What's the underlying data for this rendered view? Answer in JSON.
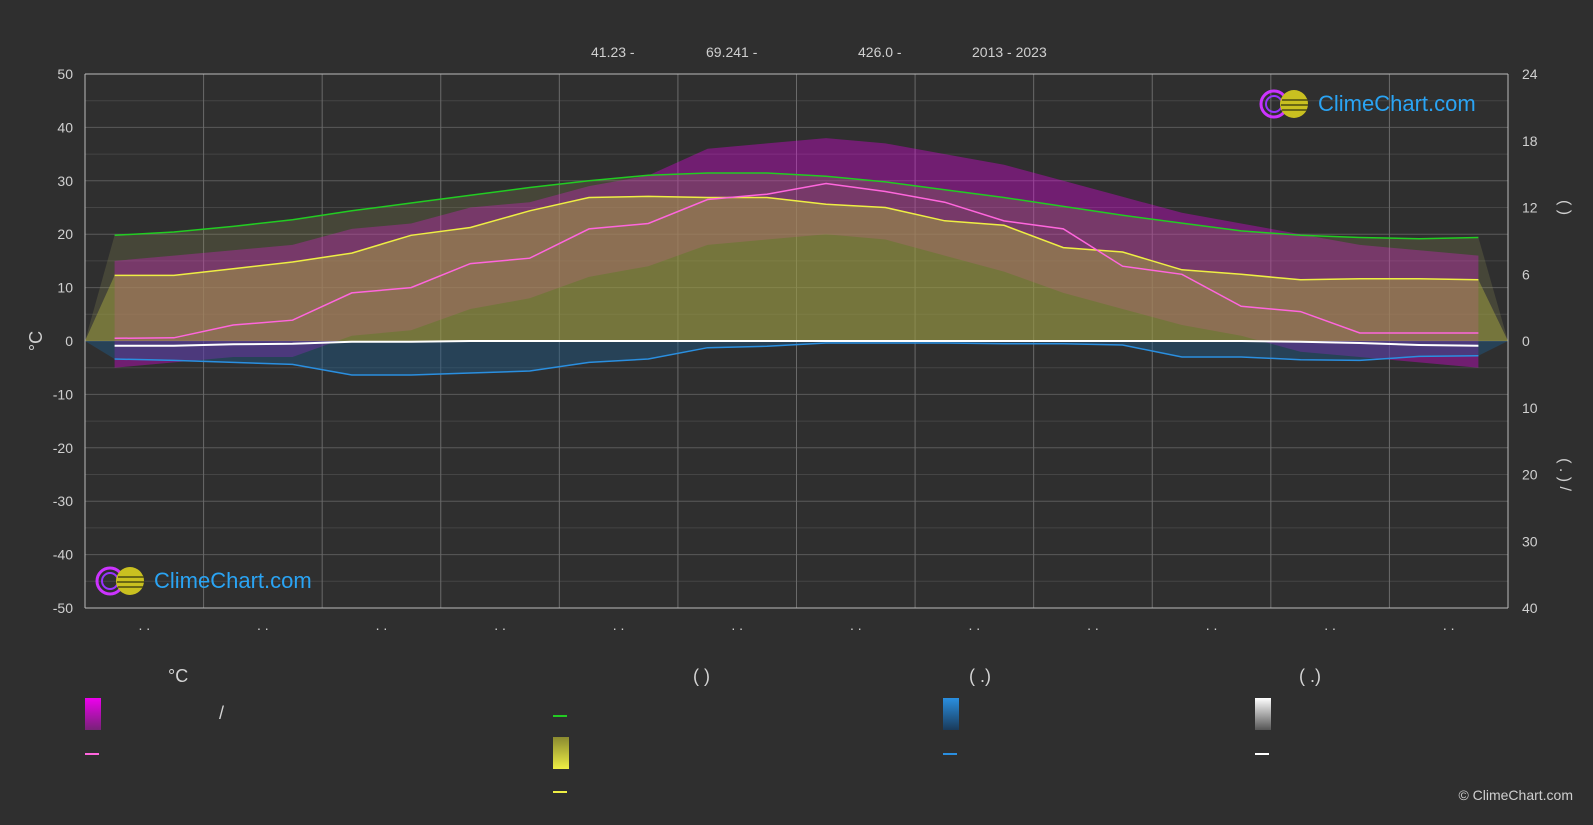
{
  "header": {
    "lat": "41.23 -",
    "lon": "69.241 -",
    "elev": "426.0 -",
    "years": "2013 - 2023"
  },
  "colors": {
    "bg": "#2f2f2f",
    "grid": "#5a5a5a",
    "daylight": "#22cc22",
    "sunshine": "#eeee44",
    "temp_mean": "#ff66dd",
    "temp_band": "#ee00ee",
    "rain": "#2a8fe0",
    "snow": "#ffffff"
  },
  "logo_text": "ClimeChart.com",
  "copyright": "© ClimeChart.com",
  "legend": {
    "temp_heading": "°C",
    "temp_slash": "/",
    "sun_heading": "(           )",
    "rain_heading": "(    .)",
    "snow_heading": "(    .)"
  },
  "chart_data": {
    "type": "line",
    "x": [
      0.5,
      1,
      1.5,
      2,
      2.5,
      3,
      3.5,
      4,
      4.5,
      5,
      5.5,
      6,
      6.5,
      7,
      7.5,
      8,
      8.5,
      9,
      9.5,
      10,
      10.5,
      11,
      11.5,
      12
    ],
    "x_tick_labels": [
      ". .",
      ". .",
      ". .",
      ". .",
      ". .",
      ". .",
      ". .",
      ". .",
      ". .",
      ". .",
      ". .",
      ". ."
    ],
    "ylabel_left": "°C",
    "ylim_left": [
      -50,
      50
    ],
    "yticks_left": [
      50,
      40,
      30,
      20,
      10,
      0,
      -10,
      -20,
      -30,
      -40,
      -50
    ],
    "ylim_right_hours": [
      0,
      24
    ],
    "yticks_right_hours": [
      24,
      18,
      12,
      6,
      0
    ],
    "ylim_right_mm": [
      0,
      40
    ],
    "yticks_right_mm": [
      10,
      20,
      30,
      40
    ],
    "right_label_upper": "(      )",
    "right_label_lower": "(  .   )    /",
    "grid": true,
    "series": [
      {
        "key": "daylight",
        "unit": "hours",
        "values": [
          9.5,
          9.8,
          10.3,
          10.9,
          11.7,
          12.4,
          13.1,
          13.8,
          14.4,
          14.9,
          15.1,
          15.1,
          14.8,
          14.3,
          13.6,
          12.9,
          12.1,
          11.3,
          10.6,
          9.9,
          9.5,
          9.3,
          9.2,
          9.3
        ]
      },
      {
        "key": "sunshine",
        "unit": "hours",
        "values": [
          5.9,
          5.9,
          6.5,
          7.1,
          7.9,
          9.5,
          10.2,
          11.7,
          12.9,
          13.0,
          12.9,
          12.9,
          12.3,
          12.0,
          10.8,
          10.4,
          8.4,
          8.0,
          6.4,
          6.0,
          5.5,
          5.6,
          5.6,
          5.5
        ]
      },
      {
        "key": "temp_mean",
        "unit": "°C",
        "values": [
          0.5,
          0.6,
          3.0,
          3.9,
          9.0,
          10.0,
          14.5,
          15.5,
          21.0,
          22.0,
          26.5,
          27.5,
          29.5,
          28.0,
          26.0,
          22.5,
          21.0,
          14.0,
          12.5,
          6.5,
          5.5,
          1.5,
          1.5,
          1.5
        ]
      },
      {
        "key": "rain",
        "unit": "mm",
        "values": [
          2.7,
          2.9,
          3.2,
          3.5,
          5.1,
          5.1,
          4.8,
          4.5,
          3.2,
          2.7,
          1.0,
          0.8,
          0.3,
          0.3,
          0.3,
          0.4,
          0.4,
          0.6,
          2.4,
          2.4,
          2.8,
          2.9,
          2.3,
          2.2
        ]
      },
      {
        "key": "snow",
        "unit": "mm",
        "values": [
          0.7,
          0.7,
          0.5,
          0.4,
          0.1,
          0.1,
          0,
          0,
          0,
          0,
          0,
          0,
          0,
          0,
          0,
          0,
          0,
          0,
          0,
          0,
          0.1,
          0.3,
          0.6,
          0.7
        ]
      },
      {
        "key": "temp_max_band",
        "unit": "°C",
        "values": [
          15,
          16,
          17,
          18,
          21,
          22,
          25,
          26,
          29,
          31,
          36,
          37,
          38,
          37,
          35,
          33,
          30,
          27,
          24,
          22,
          20,
          18,
          17,
          16
        ]
      },
      {
        "key": "temp_min_band",
        "unit": "°C",
        "values": [
          -5,
          -4,
          -3,
          -3,
          1,
          2,
          6,
          8,
          12,
          14,
          18,
          19,
          20,
          19,
          16,
          13,
          9,
          6,
          3,
          1,
          -2,
          -3,
          -4,
          -5
        ]
      }
    ]
  }
}
